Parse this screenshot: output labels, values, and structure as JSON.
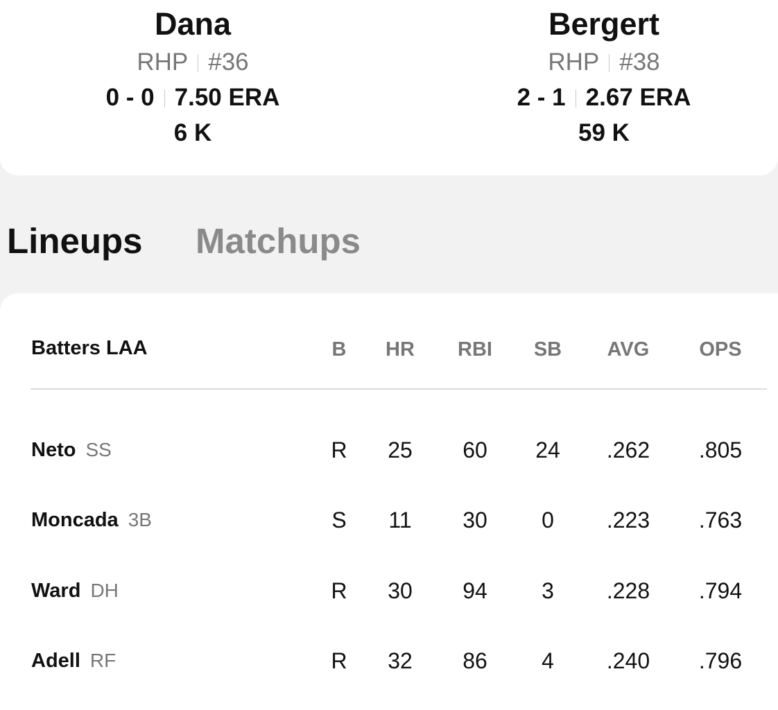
{
  "pitchers": [
    {
      "name": "Dana",
      "throws": "RHP",
      "number": "#36",
      "record": "0 - 0",
      "era": "7.50 ERA",
      "strikeouts": "6 K"
    },
    {
      "name": "Bergert",
      "throws": "RHP",
      "number": "#38",
      "record": "2 - 1",
      "era": "2.67 ERA",
      "strikeouts": "59 K"
    }
  ],
  "tabs": {
    "lineups": "Lineups",
    "matchups": "Matchups"
  },
  "lineup": {
    "title": "Batters LAA",
    "columns": {
      "b": "B",
      "hr": "HR",
      "rbi": "RBI",
      "sb": "SB",
      "avg": "AVG",
      "ops": "OPS"
    },
    "rows": [
      {
        "name": "Neto",
        "pos": "SS",
        "b": "R",
        "hr": "25",
        "rbi": "60",
        "sb": "24",
        "avg": ".262",
        "ops": ".805"
      },
      {
        "name": "Moncada",
        "pos": "3B",
        "b": "S",
        "hr": "11",
        "rbi": "30",
        "sb": "0",
        "avg": ".223",
        "ops": ".763"
      },
      {
        "name": "Ward",
        "pos": "DH",
        "b": "R",
        "hr": "30",
        "rbi": "94",
        "sb": "3",
        "avg": ".228",
        "ops": ".794"
      },
      {
        "name": "Adell",
        "pos": "RF",
        "b": "R",
        "hr": "32",
        "rbi": "86",
        "sb": "4",
        "avg": ".240",
        "ops": ".796"
      }
    ]
  }
}
